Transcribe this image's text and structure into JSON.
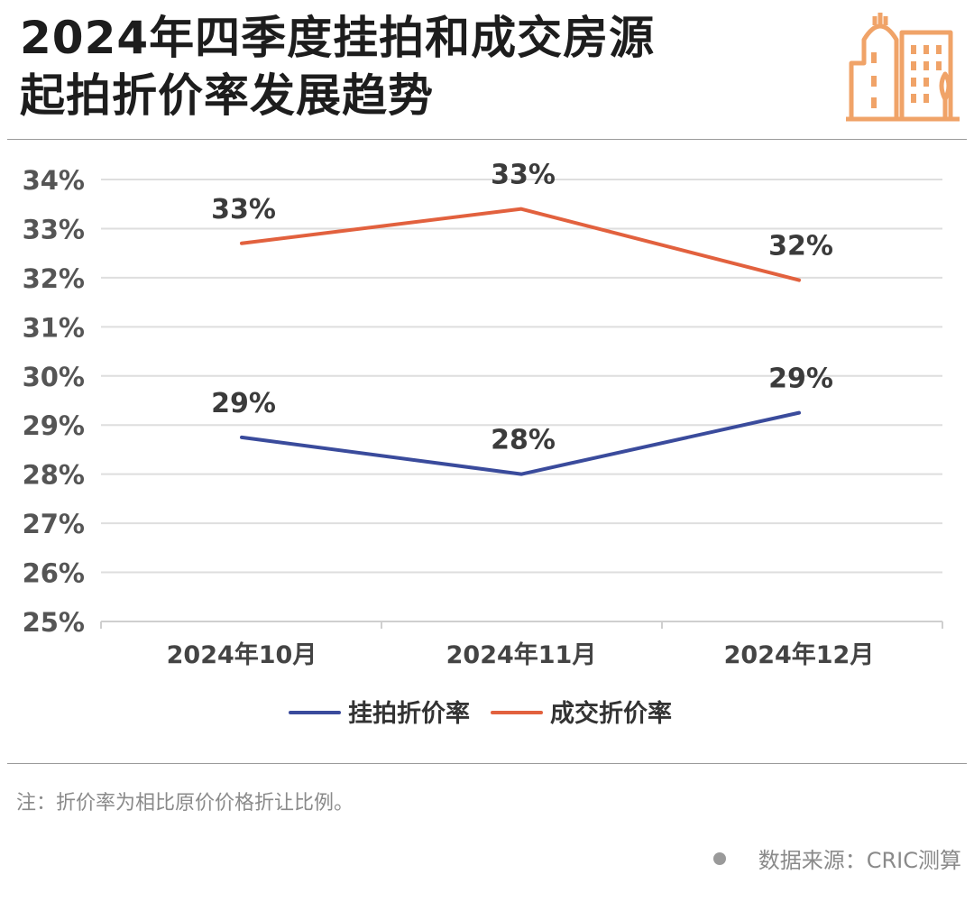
{
  "header": {
    "title_line1": "2024年四季度挂拍和成交房源",
    "title_line2": "起拍折价率发展趋势",
    "logo_icon": "building-icon"
  },
  "chart_data": {
    "type": "line",
    "title": "2024年四季度挂拍和成交房源起拍折价率发展趋势",
    "categories": [
      "2024年10月",
      "2024年11月",
      "2024年12月"
    ],
    "series": [
      {
        "name": "挂拍折价率",
        "color": "#3a4b9c",
        "values": [
          28.75,
          28.0,
          29.25
        ],
        "labels": [
          "29%",
          "28%",
          "29%"
        ]
      },
      {
        "name": "成交折价率",
        "color": "#e2613e",
        "values": [
          32.7,
          33.4,
          31.95
        ],
        "labels": [
          "33%",
          "33%",
          "32%"
        ]
      }
    ],
    "yticks": [
      "25%",
      "26%",
      "27%",
      "28%",
      "29%",
      "30%",
      "31%",
      "32%",
      "33%",
      "34%"
    ],
    "ylim": [
      25,
      34
    ],
    "grid": true,
    "legend_position": "bottom-center",
    "xlabel": "",
    "ylabel": ""
  },
  "footer": {
    "note": "注：折价率为相比原价价格折让比例。",
    "source": "数据来源：CRIC测算"
  }
}
